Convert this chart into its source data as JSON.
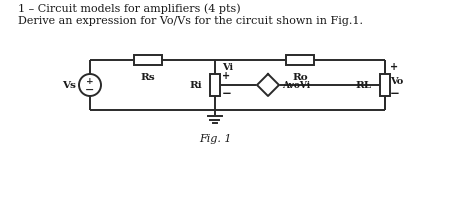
{
  "title_line1": "1 – Circuit models for amplifiers (4 pts)",
  "title_line2": "Derive an expression for Vo/Vs for the circuit shown in Fig.1.",
  "fig_label": "Fig. 1",
  "line_color": "#2a2a2a",
  "text_color": "#1a1a1a",
  "component_labels": {
    "Vs": "Vs",
    "Rs": "Rs",
    "Ri": "Ri",
    "Ro": "Ro",
    "RL": "RL",
    "dep_source": "AvοVi",
    "Vi_label": "Vi",
    "Vo_label": "Vo"
  }
}
